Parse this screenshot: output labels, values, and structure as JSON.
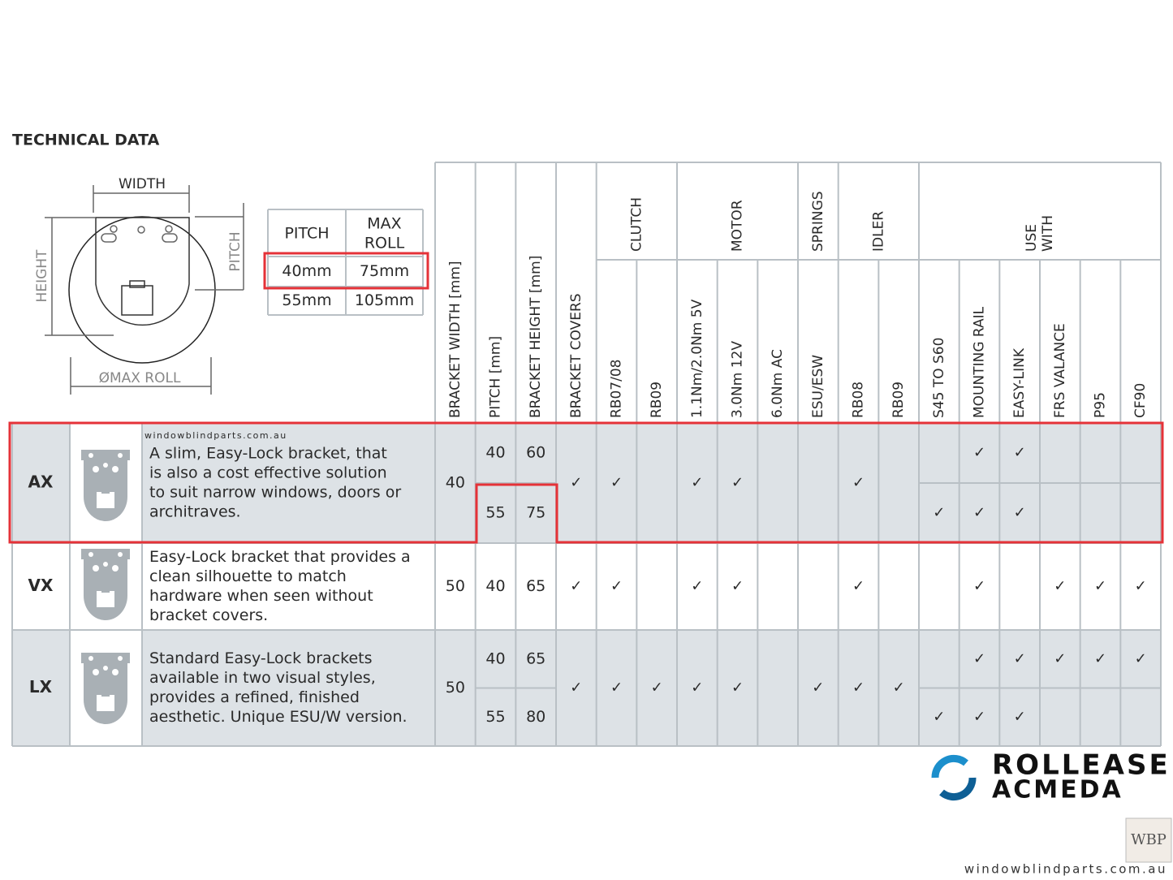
{
  "title": "TECHNICAL DATA",
  "diagram": {
    "width": "WIDTH",
    "height": "HEIGHT",
    "pitch": "PITCH",
    "max_roll": "ØMAX ROLL"
  },
  "pitch_table": {
    "header": [
      [
        "PITCH"
      ],
      [
        "MAX",
        "ROLL"
      ]
    ],
    "rows": [
      [
        "40mm",
        "75mm"
      ],
      [
        "55mm",
        "105mm"
      ]
    ]
  },
  "table": {
    "check_symbol": "✓",
    "lead_columns": [
      "BRACKET WIDTH [mm]",
      "PITCH [mm]",
      "BRACKET HEIGHT [mm]",
      "BRACKET COVERS"
    ],
    "groups": [
      {
        "label": [
          "CLUTCH"
        ],
        "columns": [
          "RB07/08",
          "RB09"
        ]
      },
      {
        "label": [
          "MOTOR"
        ],
        "columns": [
          "1.1Nm/2.0Nm 5V",
          "3.0Nm 12V",
          "6.0Nm AC"
        ]
      },
      {
        "label": [
          "SPRINGS"
        ],
        "columns": [
          "ESU/ESW"
        ]
      },
      {
        "label": [
          "IDLER"
        ],
        "columns": [
          "RB08",
          "RB09"
        ]
      },
      {
        "label": [
          "USE",
          "WITH"
        ],
        "columns": [
          "S45 TO S60",
          "MOUNTING RAIL",
          "EASY-LINK",
          "FRS VALANCE",
          "P95",
          "CF90"
        ]
      }
    ],
    "rows": [
      {
        "name": "AX",
        "description": [
          "A slim, Easy-Lock bracket, that",
          "is also a cost effective solution",
          "to suit narrow windows, doors or",
          "architraves."
        ],
        "bracket_width": 40,
        "features": [
          true,
          true,
          false,
          true,
          true,
          false,
          false,
          true,
          false
        ],
        "variants": [
          {
            "pitch": 40,
            "height": 60,
            "use_with": [
              false,
              true,
              true,
              false,
              false,
              false
            ]
          },
          {
            "pitch": 55,
            "height": 75,
            "use_with": [
              true,
              true,
              true,
              false,
              false,
              false
            ]
          }
        ]
      },
      {
        "name": "VX",
        "description": [
          "Easy-Lock bracket that provides a",
          "clean silhouette to match",
          "hardware when seen without",
          "bracket covers."
        ],
        "bracket_width": 50,
        "features": [
          true,
          true,
          false,
          true,
          true,
          false,
          false,
          true,
          false
        ],
        "variants": [
          {
            "pitch": 40,
            "height": 65,
            "use_with": [
              false,
              true,
              false,
              true,
              true,
              true
            ]
          }
        ]
      },
      {
        "name": "LX",
        "description": [
          "Standard Easy-Lock brackets",
          "available in two visual styles,",
          "provides a refined, finished",
          "aesthetic. Unique ESU/W version."
        ],
        "bracket_width": 50,
        "features": [
          true,
          true,
          true,
          true,
          true,
          false,
          true,
          true,
          true
        ],
        "variants": [
          {
            "pitch": 40,
            "height": 65,
            "use_with": [
              false,
              true,
              true,
              true,
              true,
              true
            ]
          },
          {
            "pitch": 55,
            "height": 80,
            "use_with": [
              true,
              true,
              true,
              false,
              false,
              false
            ]
          }
        ]
      }
    ]
  },
  "watermark": "windowblindparts.com.au",
  "logo": {
    "line1": "ROLLEASE",
    "line2": "ACMEDA"
  },
  "badge": "WBP",
  "footer": "windowblindparts.com.au"
}
